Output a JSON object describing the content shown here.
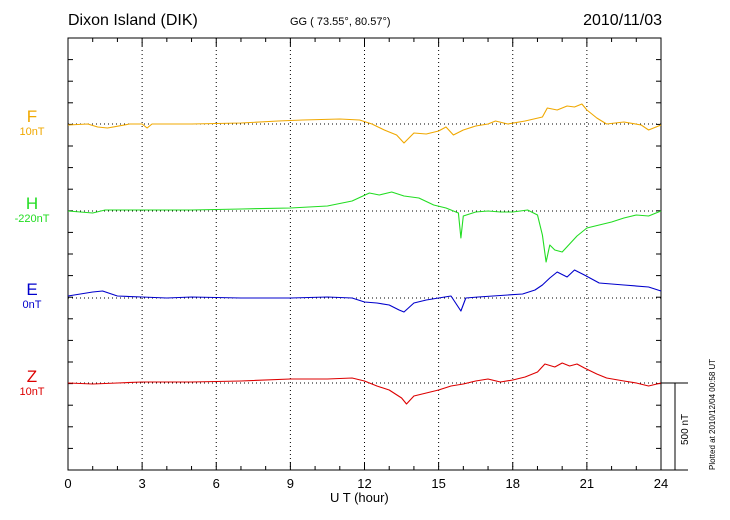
{
  "header": {
    "station": "Dixon Island (DIK)",
    "coords": "GG ( 73.55°,  80.57°)",
    "date": "2010/11/03"
  },
  "plotted_note": "Plotted at 2010/12/04 00:58 UT",
  "scale_label": "500 nT",
  "chart_data": {
    "type": "line",
    "xlabel": "U T (hour)",
    "xlim": [
      0,
      24
    ],
    "xticks": [
      "0",
      "3",
      "6",
      "9",
      "12",
      "15",
      "18",
      "21",
      "24"
    ],
    "scale_nT": 500,
    "series": [
      {
        "name": "F",
        "baseline": "10nT",
        "color": "#f0a800",
        "points": [
          [
            0,
            125
          ],
          [
            0.8,
            124
          ],
          [
            1.2,
            127
          ],
          [
            1.6,
            128
          ],
          [
            2.5,
            124
          ],
          [
            3,
            124
          ],
          [
            3.2,
            128
          ],
          [
            3.4,
            124
          ],
          [
            5,
            124
          ],
          [
            7,
            123
          ],
          [
            8.5,
            121
          ],
          [
            9.5,
            120
          ],
          [
            11,
            119
          ],
          [
            11.8,
            120
          ],
          [
            12.3,
            124
          ],
          [
            12.8,
            130
          ],
          [
            13.3,
            135
          ],
          [
            13.6,
            143
          ],
          [
            14,
            133
          ],
          [
            14.5,
            134
          ],
          [
            15,
            131
          ],
          [
            15.3,
            127
          ],
          [
            15.6,
            135
          ],
          [
            16,
            130
          ],
          [
            16.5,
            126
          ],
          [
            17,
            124
          ],
          [
            17.3,
            121
          ],
          [
            17.8,
            124
          ],
          [
            18.5,
            121
          ],
          [
            19.2,
            117
          ],
          [
            19.4,
            108
          ],
          [
            19.8,
            110
          ],
          [
            20.2,
            106
          ],
          [
            20.5,
            107
          ],
          [
            20.8,
            104
          ],
          [
            21,
            110
          ],
          [
            21.4,
            118
          ],
          [
            21.8,
            124
          ],
          [
            22.5,
            122
          ],
          [
            23.2,
            125
          ],
          [
            23.5,
            130
          ],
          [
            24,
            125
          ]
        ]
      },
      {
        "name": "H",
        "baseline": "-220nT",
        "color": "#22dd22",
        "points": [
          [
            0,
            211
          ],
          [
            1,
            213
          ],
          [
            1.5,
            210
          ],
          [
            3,
            210
          ],
          [
            5,
            210
          ],
          [
            7,
            209
          ],
          [
            9,
            208
          ],
          [
            10.5,
            206
          ],
          [
            11.5,
            201
          ],
          [
            12.2,
            193
          ],
          [
            12.6,
            195
          ],
          [
            13.1,
            192
          ],
          [
            13.6,
            196
          ],
          [
            14.2,
            198
          ],
          [
            14.8,
            205
          ],
          [
            15.3,
            208
          ],
          [
            15.8,
            213
          ],
          [
            15.9,
            238
          ],
          [
            16,
            216
          ],
          [
            16.5,
            212
          ],
          [
            17,
            211
          ],
          [
            17.5,
            212
          ],
          [
            18,
            212
          ],
          [
            18.6,
            210
          ],
          [
            19,
            215
          ],
          [
            19.2,
            235
          ],
          [
            19.35,
            262
          ],
          [
            19.5,
            245
          ],
          [
            19.7,
            250
          ],
          [
            20,
            252
          ],
          [
            20.3,
            244
          ],
          [
            20.6,
            236
          ],
          [
            21,
            228
          ],
          [
            21.5,
            225
          ],
          [
            22,
            222
          ],
          [
            22.5,
            218
          ],
          [
            23,
            215
          ],
          [
            23.5,
            216
          ],
          [
            24,
            211
          ]
        ]
      },
      {
        "name": "E",
        "baseline": "0nT",
        "color": "#0000cc",
        "points": [
          [
            0,
            296
          ],
          [
            1,
            292
          ],
          [
            1.4,
            291
          ],
          [
            2,
            296
          ],
          [
            3,
            297
          ],
          [
            4,
            298
          ],
          [
            5,
            297
          ],
          [
            7,
            298
          ],
          [
            9,
            298
          ],
          [
            10.5,
            297
          ],
          [
            11.5,
            298
          ],
          [
            12,
            302
          ],
          [
            12.5,
            303
          ],
          [
            13,
            305
          ],
          [
            13.4,
            310
          ],
          [
            13.6,
            312
          ],
          [
            14,
            303
          ],
          [
            14.5,
            300
          ],
          [
            15,
            298
          ],
          [
            15.5,
            296
          ],
          [
            15.9,
            311
          ],
          [
            16.1,
            298
          ],
          [
            16.6,
            297
          ],
          [
            17.2,
            296
          ],
          [
            17.8,
            295
          ],
          [
            18.4,
            294
          ],
          [
            18.9,
            290
          ],
          [
            19.2,
            285
          ],
          [
            19.5,
            278
          ],
          [
            19.8,
            272
          ],
          [
            20.2,
            277
          ],
          [
            20.5,
            270
          ],
          [
            20.9,
            275
          ],
          [
            21.5,
            283
          ],
          [
            22.5,
            285
          ],
          [
            23.5,
            287
          ],
          [
            24,
            291
          ]
        ]
      },
      {
        "name": "Z",
        "baseline": "10nT",
        "color": "#dd0000",
        "points": [
          [
            0,
            383
          ],
          [
            1,
            384
          ],
          [
            2,
            383
          ],
          [
            3,
            382
          ],
          [
            5,
            382
          ],
          [
            7,
            381
          ],
          [
            9,
            379
          ],
          [
            10.5,
            379
          ],
          [
            11.5,
            378
          ],
          [
            12,
            381
          ],
          [
            12.5,
            386
          ],
          [
            13,
            390
          ],
          [
            13.5,
            398
          ],
          [
            13.7,
            404
          ],
          [
            14,
            396
          ],
          [
            14.5,
            393
          ],
          [
            15,
            390
          ],
          [
            15.5,
            386
          ],
          [
            16,
            384
          ],
          [
            16.5,
            381
          ],
          [
            17,
            379
          ],
          [
            17.5,
            382
          ],
          [
            18,
            380
          ],
          [
            18.5,
            377
          ],
          [
            19,
            372
          ],
          [
            19.3,
            364
          ],
          [
            19.7,
            367
          ],
          [
            20,
            363
          ],
          [
            20.3,
            366
          ],
          [
            20.6,
            364
          ],
          [
            20.9,
            368
          ],
          [
            21.4,
            374
          ],
          [
            21.8,
            378
          ],
          [
            22.5,
            381
          ],
          [
            23,
            383
          ],
          [
            23.5,
            386
          ],
          [
            24,
            383
          ]
        ]
      }
    ]
  }
}
